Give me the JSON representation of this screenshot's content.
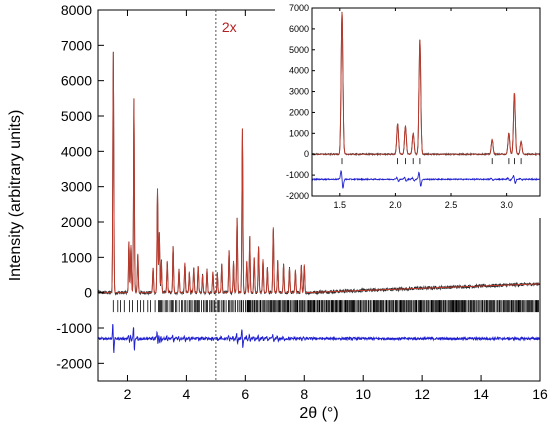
{
  "chart_data": [
    {
      "type": "line",
      "id": "main",
      "xlabel": "2θ (°)",
      "ylabel": "Intensity (arbitrary units)",
      "xlim": [
        1,
        16
      ],
      "ylim": [
        -2500,
        8000
      ],
      "xticks": [
        2,
        4,
        6,
        8,
        10,
        12,
        14,
        16
      ],
      "yticks": [
        -2000,
        -1000,
        0,
        1000,
        2000,
        3000,
        4000,
        5000,
        6000,
        7000,
        8000
      ],
      "grid": false,
      "annotations": [
        {
          "text": "2x",
          "x": 5.0
        }
      ],
      "colors": {
        "calculated": "#c0392b",
        "observed": "#2b2b2b",
        "difference": "#1f1fd0",
        "reflections": "#000000"
      },
      "series": [
        {
          "role": "calculated",
          "peaks": [
            [
              1.52,
              6800
            ],
            [
              2.05,
              1450
            ],
            [
              2.12,
              1350
            ],
            [
              2.22,
              5500
            ],
            [
              2.35,
              1100
            ],
            [
              2.87,
              700
            ],
            [
              3.02,
              2950
            ],
            [
              3.08,
              1700
            ],
            [
              3.15,
              900
            ],
            [
              3.35,
              900
            ],
            [
              3.55,
              1300
            ],
            [
              3.75,
              650
            ],
            [
              3.95,
              850
            ],
            [
              4.1,
              600
            ],
            [
              4.25,
              700
            ],
            [
              4.4,
              750
            ],
            [
              4.55,
              500
            ],
            [
              4.7,
              650
            ],
            [
              4.9,
              600
            ],
            [
              5.05,
              550
            ],
            [
              5.2,
              800
            ],
            [
              5.45,
              1200
            ],
            [
              5.6,
              900
            ],
            [
              5.72,
              2100
            ],
            [
              5.9,
              4650
            ],
            [
              6.05,
              900
            ],
            [
              6.15,
              1600
            ],
            [
              6.3,
              1000
            ],
            [
              6.45,
              1300
            ],
            [
              6.6,
              950
            ],
            [
              6.75,
              700
            ],
            [
              6.95,
              1850
            ],
            [
              7.1,
              900
            ],
            [
              7.3,
              800
            ],
            [
              7.5,
              700
            ],
            [
              7.7,
              650
            ],
            [
              7.9,
              750
            ],
            [
              8.0,
              800
            ]
          ],
          "baseline": 0
        },
        {
          "role": "observed",
          "baseline": 0,
          "rising_to": [
            16,
            250
          ]
        },
        {
          "role": "difference",
          "baseline": -1300
        },
        {
          "role": "reflections",
          "baseline": -380,
          "start": 1.52
        }
      ]
    },
    {
      "type": "line",
      "id": "inset",
      "xlim": [
        1.25,
        3.3
      ],
      "ylim": [
        -2000,
        7000
      ],
      "xticks": [
        1.5,
        2.0,
        2.5,
        3.0
      ],
      "xtick_labels": [
        "1.5",
        "2.0",
        "2.5",
        "3.0"
      ],
      "yticks": [
        -2000,
        -1000,
        0,
        1000,
        2000,
        3000,
        4000,
        5000,
        6000,
        7000
      ],
      "grid": false,
      "series": [
        {
          "role": "calculated",
          "peaks": [
            [
              1.52,
              6800
            ],
            [
              2.02,
              1450
            ],
            [
              2.09,
              1350
            ],
            [
              2.16,
              1000
            ],
            [
              2.22,
              5500
            ],
            [
              2.87,
              700
            ],
            [
              3.02,
              1000
            ],
            [
              3.07,
              2950
            ],
            [
              3.13,
              600
            ]
          ],
          "baseline": 0
        },
        {
          "role": "observed",
          "baseline": 0
        },
        {
          "role": "difference",
          "baseline": -1200
        },
        {
          "role": "reflections",
          "positions": [
            1.52,
            2.02,
            2.09,
            2.16,
            2.22,
            2.87,
            3.02,
            3.07,
            3.13
          ],
          "baseline": -330
        }
      ]
    }
  ]
}
